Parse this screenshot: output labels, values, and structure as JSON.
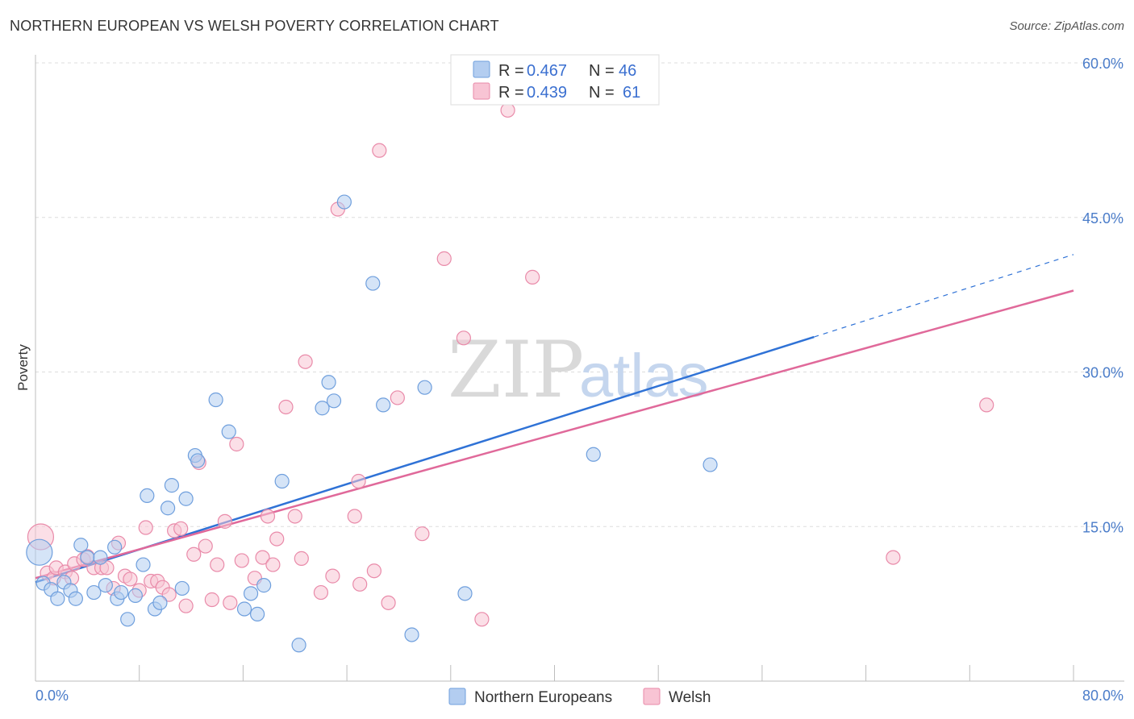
{
  "title": "NORTHERN EUROPEAN VS WELSH POVERTY CORRELATION CHART",
  "source": "Source: ZipAtlas.com",
  "watermark": {
    "zip": "ZIP",
    "atlas": "atlas"
  },
  "colors": {
    "blue_fill": "#b3cdf0",
    "blue_stroke": "#6f9fdd",
    "blue_line": "#2f72d6",
    "pink_fill": "#f8c4d4",
    "pink_stroke": "#e98aa9",
    "pink_line": "#e0699a",
    "tick_text": "#4a7cc9",
    "grid": "#dddddd"
  },
  "legend": {
    "rows": [
      {
        "r_label": "R = ",
        "r_value": "0.467",
        "n_label": "N = ",
        "n_value": "46",
        "color": "blue"
      },
      {
        "r_label": "R = ",
        "r_value": "0.439",
        "n_label": "N = ",
        "n_value": "61",
        "color": "pink"
      }
    ]
  },
  "chart_data": {
    "type": "scatter",
    "title": "NORTHERN EUROPEAN VS WELSH POVERTY CORRELATION CHART",
    "xlabel": "",
    "ylabel": "Poverty",
    "xlim": [
      0,
      80
    ],
    "ylim": [
      0,
      60
    ],
    "x_tick_labels": [
      "0.0%",
      "80.0%"
    ],
    "y_ticks": [
      15,
      30,
      45,
      60
    ],
    "y_tick_labels": [
      "15.0%",
      "30.0%",
      "45.0%",
      "60.0%"
    ],
    "grid": "horizontal dashed",
    "legend_position": "top-center",
    "series": [
      {
        "name": "Northern Europeans",
        "color": "blue",
        "r": 0.467,
        "n": 46,
        "trend": {
          "x0": 0,
          "y0": 9.6,
          "x1": 60,
          "y1": 33.4,
          "dashed_to_x": 80,
          "dashed_to_y": 41.4
        },
        "points": [
          [
            0.3,
            12.5
          ],
          [
            0.6,
            9.5
          ],
          [
            1.2,
            8.9
          ],
          [
            1.7,
            8.0
          ],
          [
            2.2,
            9.6
          ],
          [
            2.7,
            8.8
          ],
          [
            3.1,
            8.0
          ],
          [
            3.5,
            13.2
          ],
          [
            4.0,
            12.0
          ],
          [
            4.5,
            8.6
          ],
          [
            5.0,
            12.0
          ],
          [
            5.4,
            9.3
          ],
          [
            6.1,
            13.0
          ],
          [
            6.3,
            8.0
          ],
          [
            6.6,
            8.6
          ],
          [
            7.1,
            6.0
          ],
          [
            7.7,
            8.3
          ],
          [
            8.3,
            11.3
          ],
          [
            8.6,
            18.0
          ],
          [
            9.2,
            7.0
          ],
          [
            9.6,
            7.6
          ],
          [
            10.2,
            16.8
          ],
          [
            10.5,
            19.0
          ],
          [
            11.3,
            9.0
          ],
          [
            11.6,
            17.7
          ],
          [
            12.3,
            21.9
          ],
          [
            12.5,
            21.4
          ],
          [
            13.9,
            27.3
          ],
          [
            14.9,
            24.2
          ],
          [
            16.1,
            7.0
          ],
          [
            16.6,
            8.5
          ],
          [
            17.1,
            6.5
          ],
          [
            17.6,
            9.3
          ],
          [
            19.0,
            19.4
          ],
          [
            20.3,
            3.5
          ],
          [
            22.1,
            26.5
          ],
          [
            22.6,
            29.0
          ],
          [
            23.0,
            27.2
          ],
          [
            23.8,
            46.5
          ],
          [
            26.0,
            38.6
          ],
          [
            26.8,
            26.8
          ],
          [
            29.0,
            4.5
          ],
          [
            30.0,
            28.5
          ],
          [
            33.1,
            8.5
          ],
          [
            43.0,
            22.0
          ],
          [
            52.0,
            21.0
          ]
        ]
      },
      {
        "name": "Welsh",
        "color": "pink",
        "r": 0.439,
        "n": 61,
        "trend": {
          "x0": 0,
          "y0": 10.0,
          "x1": 80,
          "y1": 37.9
        },
        "points": [
          [
            0.4,
            14.0
          ],
          [
            0.9,
            10.5
          ],
          [
            1.4,
            10.0
          ],
          [
            1.6,
            11.0
          ],
          [
            2.3,
            10.6
          ],
          [
            2.8,
            10.0
          ],
          [
            3.0,
            11.4
          ],
          [
            3.7,
            11.8
          ],
          [
            4.0,
            12.1
          ],
          [
            4.5,
            11.0
          ],
          [
            5.1,
            11.0
          ],
          [
            5.5,
            11.0
          ],
          [
            6.0,
            9.0
          ],
          [
            6.4,
            13.4
          ],
          [
            6.9,
            10.2
          ],
          [
            7.3,
            9.9
          ],
          [
            8.0,
            8.8
          ],
          [
            8.5,
            14.9
          ],
          [
            8.9,
            9.7
          ],
          [
            9.4,
            9.7
          ],
          [
            9.8,
            9.1
          ],
          [
            10.3,
            8.4
          ],
          [
            10.7,
            14.6
          ],
          [
            11.2,
            14.8
          ],
          [
            11.6,
            7.3
          ],
          [
            12.2,
            12.3
          ],
          [
            12.6,
            21.2
          ],
          [
            13.1,
            13.1
          ],
          [
            13.6,
            7.9
          ],
          [
            14.0,
            11.3
          ],
          [
            14.6,
            15.5
          ],
          [
            15.0,
            7.6
          ],
          [
            15.5,
            23.0
          ],
          [
            15.9,
            11.7
          ],
          [
            16.9,
            10.0
          ],
          [
            17.5,
            12.0
          ],
          [
            17.9,
            16.0
          ],
          [
            18.3,
            11.3
          ],
          [
            18.6,
            13.8
          ],
          [
            19.3,
            26.6
          ],
          [
            20.0,
            16.0
          ],
          [
            20.5,
            11.9
          ],
          [
            20.8,
            31.0
          ],
          [
            22.0,
            8.6
          ],
          [
            22.9,
            10.2
          ],
          [
            23.3,
            45.8
          ],
          [
            24.6,
            16.0
          ],
          [
            24.9,
            19.4
          ],
          [
            25.0,
            9.4
          ],
          [
            26.1,
            10.7
          ],
          [
            26.5,
            51.5
          ],
          [
            27.2,
            7.6
          ],
          [
            27.9,
            27.5
          ],
          [
            29.8,
            14.3
          ],
          [
            31.5,
            41.0
          ],
          [
            33.0,
            33.3
          ],
          [
            34.4,
            6.0
          ],
          [
            36.4,
            55.4
          ],
          [
            38.3,
            39.2
          ],
          [
            66.1,
            12.0
          ],
          [
            73.3,
            26.8
          ]
        ]
      }
    ]
  }
}
